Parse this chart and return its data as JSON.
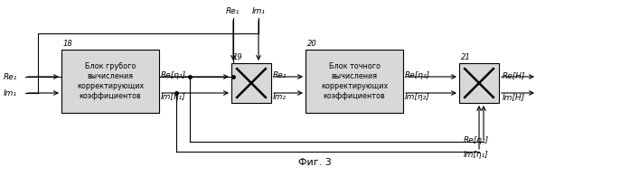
{
  "fig_label": "Фиг. 3",
  "bg_color": "#ffffff",
  "line_color": "#000000",
  "box_color": "#d8d8d8",
  "box_edge": "#000000",
  "block18_label": "Блок грубого\nвычисления\nкорректирующих\nкоэффициентов",
  "block20_label": "Блок точного\nвычисления\nкорректирующих\nкоэффициентов",
  "block18_num": "18",
  "block19_num": "19",
  "block20_num": "20",
  "block21_num": "21",
  "input_re1": "Re₁",
  "input_im1": "Im₁",
  "top_re1": "Re₁",
  "top_im1": "Im₁",
  "eta1_re": "Re[η₁]",
  "eta1_im": "Im[η₁]",
  "re2": "Re₂",
  "im2": "Im₂",
  "eta2_re": "Re[η₂]",
  "eta2_im": "Im[η₂]",
  "reH": "Re[H]",
  "imH": "Im[H]",
  "font_size_label": 6.5,
  "font_size_block": 5.8,
  "font_size_num": 6.0,
  "fig_fontsize": 8.0
}
